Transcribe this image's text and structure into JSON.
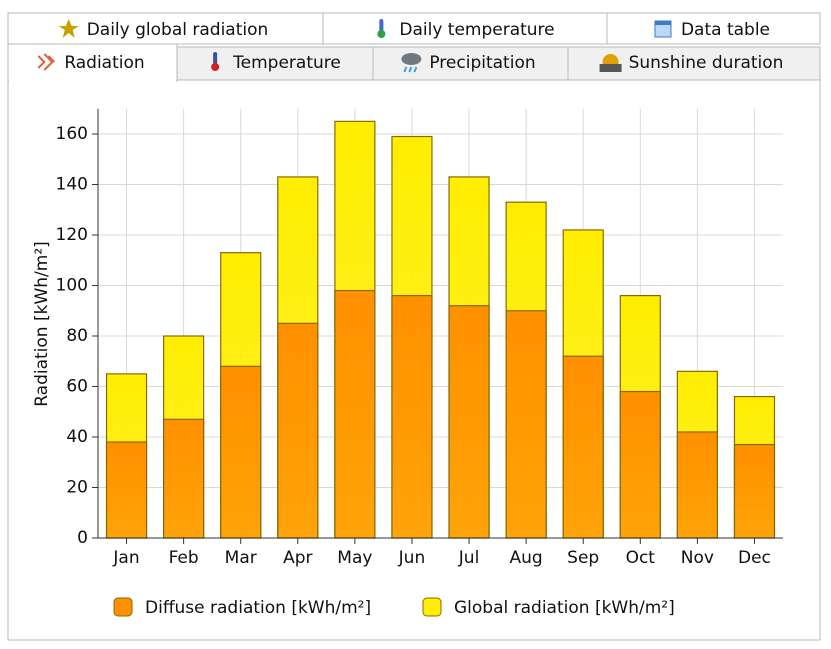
{
  "tabs": {
    "row1": [
      "Daily global radiation",
      "Daily temperature",
      "Data table"
    ],
    "row2": [
      "Radiation",
      "Temperature",
      "Precipitation",
      "Sunshine duration"
    ]
  },
  "chart_data": {
    "type": "bar",
    "overlap": true,
    "y_label": "Radiation [kWh/m²]",
    "categories": [
      "Jan",
      "Feb",
      "Mar",
      "Apr",
      "May",
      "Jun",
      "Jul",
      "Aug",
      "Sep",
      "Oct",
      "Nov",
      "Dec"
    ],
    "series": [
      {
        "name": "Global radiation [kWh/m²]",
        "color": "#ffee00",
        "values": [
          65,
          80,
          113,
          143,
          165,
          159,
          143,
          133,
          122,
          96,
          66,
          56
        ]
      },
      {
        "name": "Diffuse radiation [kWh/m²]",
        "color": "#ff9000",
        "values": [
          38,
          47,
          68,
          85,
          98,
          96,
          92,
          90,
          72,
          58,
          42,
          37
        ]
      }
    ],
    "legend_order": [
      1,
      0
    ],
    "ylim": [
      0,
      170
    ],
    "yticks": [
      0,
      20,
      40,
      60,
      80,
      100,
      120,
      140,
      160
    ],
    "grid": true
  }
}
